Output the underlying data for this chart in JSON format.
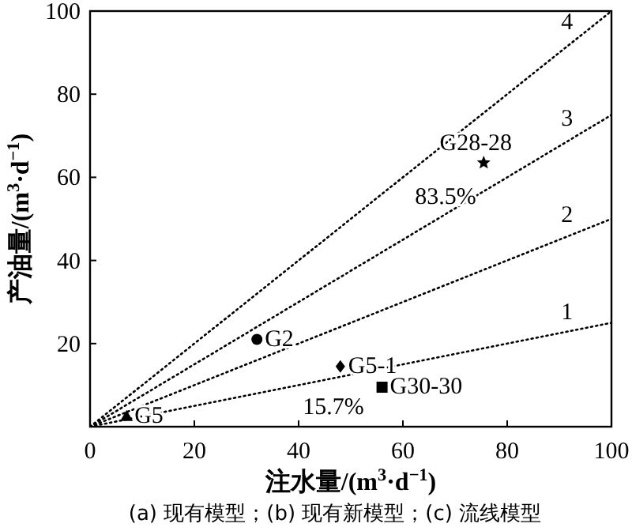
{
  "chart_data": {
    "type": "scatter",
    "xlabel": "注水量/(m$^{3}$·d$^{−1}$)",
    "ylabel": "产油量/(m$^{3}$·d$^{−1}$)",
    "xlim": [
      0,
      100
    ],
    "ylim": [
      0,
      100
    ],
    "xticks": [
      0,
      20,
      40,
      60,
      80,
      100
    ],
    "yticks": [
      {
        "value": 0,
        "label": null
      },
      20,
      40,
      60,
      80,
      100
    ],
    "series": [
      {
        "name": "1",
        "type": "line",
        "x": [
          0,
          100
        ],
        "values": [
          0,
          25
        ],
        "color": "#000000",
        "line_style": "dotted"
      },
      {
        "name": "2",
        "type": "line",
        "x": [
          0,
          100
        ],
        "values": [
          0,
          50
        ],
        "color": "#000000",
        "line_style": "dotted"
      },
      {
        "name": "3",
        "type": "line",
        "x": [
          0,
          100
        ],
        "values": [
          0,
          75
        ],
        "color": "#000000",
        "line_style": "dotted"
      },
      {
        "name": "4",
        "type": "line",
        "x": [
          0,
          100
        ],
        "values": [
          0,
          100
        ],
        "color": "#000000",
        "line_style": "dotted"
      },
      {
        "name": "G5",
        "x": [
          7
        ],
        "values": [
          2.5
        ],
        "color": "#000000",
        "marker": "triangle"
      },
      {
        "name": "G2",
        "x": [
          32
        ],
        "values": [
          21
        ],
        "color": "#000000",
        "marker": "circle"
      },
      {
        "name": "G5-1",
        "x": [
          48
        ],
        "values": [
          14.5
        ],
        "color": "#000000",
        "marker": "diamond"
      },
      {
        "name": "G30-30",
        "x": [
          56
        ],
        "values": [
          9.5
        ],
        "color": "#000000",
        "marker": "square"
      },
      {
        "name": "G28-28",
        "x": [
          75.5
        ],
        "values": [
          63.5
        ],
        "color": "#000000",
        "marker": "star"
      }
    ],
    "annotations": [
      "83.5%",
      "15.7%",
      "(a) 现有模型；(b) 现有新模型；(c) 流线模型"
    ]
  }
}
